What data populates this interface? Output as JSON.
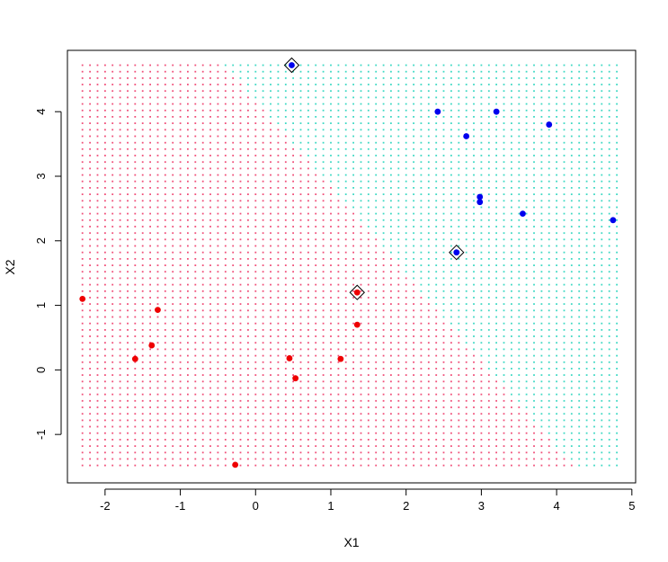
{
  "chart_data": {
    "type": "scatter",
    "title": "",
    "xlabel": "X1",
    "ylabel": "X2",
    "xlim": [
      -2.5,
      5.05
    ],
    "ylim": [
      -1.75,
      4.95
    ],
    "x_ticks": [
      -2,
      -1,
      0,
      1,
      2,
      3,
      4,
      5
    ],
    "y_ticks": [
      -1,
      0,
      1,
      2,
      3,
      4
    ],
    "x_tick_labels": [
      "-2",
      "-1",
      "0",
      "1",
      "2",
      "3",
      "4",
      "5"
    ],
    "y_tick_labels": [
      "-1",
      "0",
      "1",
      "2",
      "3",
      "4"
    ],
    "grid": false,
    "background_grid": {
      "x_range": [
        -2.3,
        4.75
      ],
      "y_range": [
        -1.48,
        4.72
      ],
      "step_x": 0.1,
      "step_y": 0.1,
      "boundary": {
        "description": "linear decision boundary (class 1 above-right)",
        "x_top": -0.4,
        "y_top": 4.72,
        "x_bottom": 4.2,
        "y_bottom": -1.48
      },
      "class_colors": {
        "class_0": "#f0507a",
        "class_1": "#3fd9c4"
      }
    },
    "series": [
      {
        "color": "#ee0000",
        "points": [
          [
            -2.3,
            1.1
          ],
          [
            -1.3,
            0.93
          ],
          [
            -1.38,
            0.38
          ],
          [
            -1.6,
            0.17
          ],
          [
            -0.27,
            -1.47
          ],
          [
            0.45,
            0.18
          ],
          [
            0.53,
            -0.13
          ],
          [
            1.13,
            0.17
          ],
          [
            1.35,
            0.7
          ],
          [
            1.35,
            1.2
          ]
        ]
      },
      {
        "color": "#0000ee",
        "points": [
          [
            0.48,
            4.72
          ],
          [
            2.42,
            4.0
          ],
          [
            2.8,
            3.62
          ],
          [
            3.2,
            4.0
          ],
          [
            3.9,
            3.8
          ],
          [
            2.98,
            2.68
          ],
          [
            2.98,
            2.6
          ],
          [
            3.55,
            2.42
          ],
          [
            4.75,
            2.32
          ],
          [
            2.67,
            1.82
          ]
        ]
      }
    ],
    "support_vectors": [
      [
        0.48,
        4.72
      ],
      [
        2.67,
        1.82
      ],
      [
        1.35,
        1.2
      ]
    ]
  }
}
